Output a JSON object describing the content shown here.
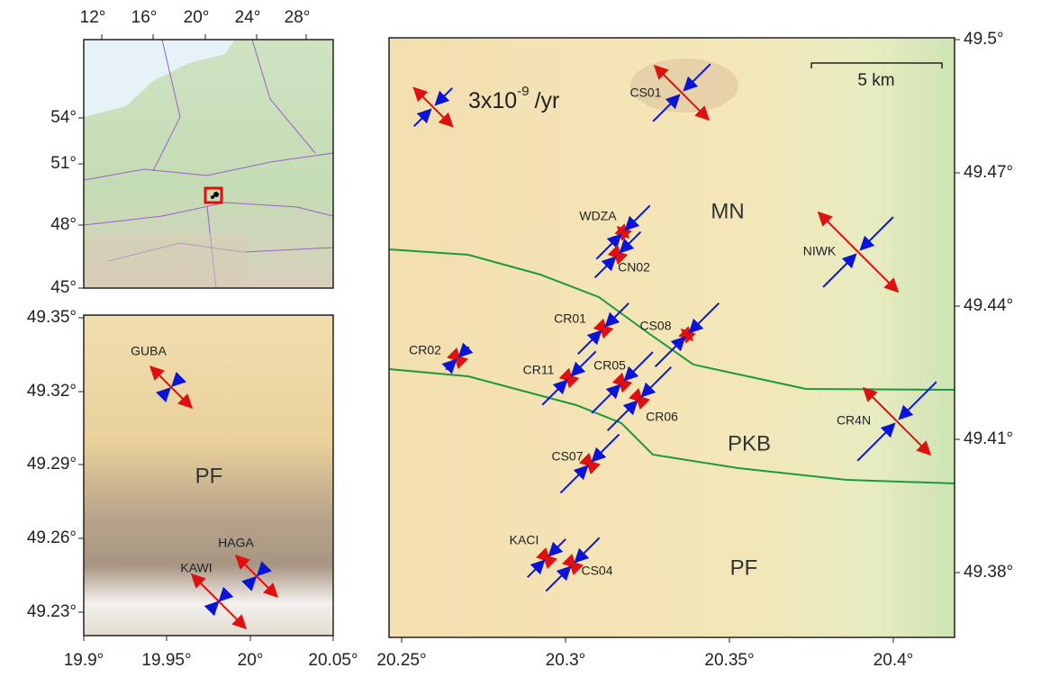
{
  "overview_map": {
    "x_labels": [
      "12°",
      "16°",
      "20°",
      "24°",
      "28°"
    ],
    "y_labels": [
      "54°",
      "51°",
      "48°",
      "45°"
    ]
  },
  "inset_map": {
    "x_labels": [
      "19.9°",
      "19.95°",
      "20°",
      "20.05°"
    ],
    "y_labels": [
      "49.35°",
      "49.32°",
      "49.29°",
      "49.26°",
      "49.23°"
    ],
    "regions": [
      "PF"
    ],
    "stations": [
      "GUBA",
      "HAGA",
      "KAWI"
    ]
  },
  "main_map": {
    "x_labels": [
      "20.25°",
      "20.3°",
      "20.35°",
      "20.4°"
    ],
    "y_labels": [
      "49.5°",
      "49.47°",
      "49.44°",
      "49.41°",
      "49.38°"
    ],
    "scale_bar": "5 km",
    "legend": {
      "base": "3x10",
      "exponent": "-9",
      "unit": "/yr"
    },
    "regions": [
      "MN",
      "PKB",
      "PF"
    ],
    "stations": [
      "CS01",
      "WDZA",
      "CN02",
      "NIWK",
      "CR01",
      "CS08",
      "CR02",
      "CR11",
      "CR05",
      "CR06",
      "CR4N",
      "CS07",
      "KACI",
      "CS04"
    ]
  }
}
